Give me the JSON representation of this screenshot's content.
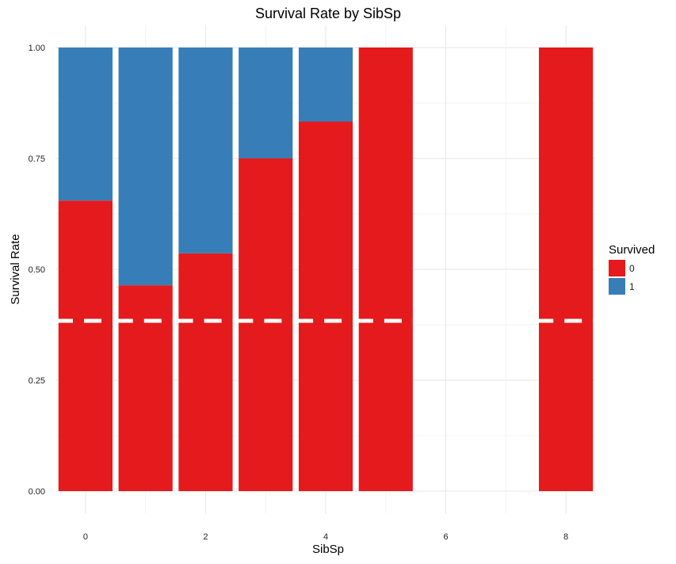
{
  "chart_data": {
    "type": "bar",
    "stacked": true,
    "title": "Survival Rate by SibSp",
    "xlabel": "SibSp",
    "ylabel": "Survival Rate",
    "categories": [
      0,
      1,
      2,
      3,
      4,
      5,
      8
    ],
    "xlim": [
      -0.5,
      8.5
    ],
    "ylim": [
      0,
      1
    ],
    "x_ticks": [
      "0",
      "2",
      "4",
      "6",
      "8"
    ],
    "y_ticks": [
      "0.00",
      "0.25",
      "0.50",
      "0.75",
      "1.00"
    ],
    "series": [
      {
        "name": "0",
        "color": "#E41A1C",
        "values": [
          0.655,
          0.464,
          0.536,
          0.75,
          0.833,
          1.0,
          1.0
        ]
      },
      {
        "name": "1",
        "color": "#377EB8",
        "values": [
          0.345,
          0.536,
          0.464,
          0.25,
          0.167,
          0.0,
          0.0
        ]
      }
    ],
    "reference_line": {
      "y": 0.384,
      "style": "dashed",
      "color": "#FFFFFF"
    },
    "legend": {
      "title": "Survived",
      "position": "right",
      "entries": [
        "0",
        "1"
      ]
    },
    "grid": true
  }
}
